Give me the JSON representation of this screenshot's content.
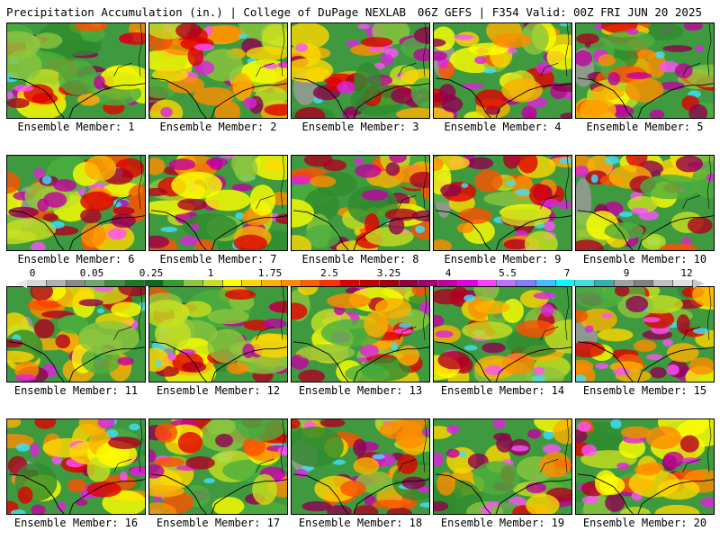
{
  "header": {
    "left_title": "Precipitation Accumulation (in.) | College of DuPage NEXLAB",
    "right_title": "06Z GEFS | F354 Valid: 00Z FRI JUN 20 2025"
  },
  "panels": [
    {
      "label": "Ensemble Member: 1"
    },
    {
      "label": "Ensemble Member: 2"
    },
    {
      "label": "Ensemble Member: 3"
    },
    {
      "label": "Ensemble Member: 4"
    },
    {
      "label": "Ensemble Member: 5"
    },
    {
      "label": "Ensemble Member: 6"
    },
    {
      "label": "Ensemble Member: 7"
    },
    {
      "label": "Ensemble Member: 8"
    },
    {
      "label": "Ensemble Member: 9"
    },
    {
      "label": "Ensemble Member: 10"
    },
    {
      "label": "Ensemble Member: 11"
    },
    {
      "label": "Ensemble Member: 12"
    },
    {
      "label": "Ensemble Member: 13"
    },
    {
      "label": "Ensemble Member: 14"
    },
    {
      "label": "Ensemble Member: 15"
    },
    {
      "label": "Ensemble Member: 16"
    },
    {
      "label": "Ensemble Member: 17"
    },
    {
      "label": "Ensemble Member: 18"
    },
    {
      "label": "Ensemble Member: 19"
    },
    {
      "label": "Ensemble Member: 20"
    }
  ],
  "colorbar": {
    "labels": [
      "0",
      "0.05",
      "0.25",
      "1",
      "1.75",
      "2.5",
      "3.25",
      "4",
      "5.5",
      "7",
      "9",
      "12"
    ],
    "colors": [
      "#d8d8d8",
      "#b0b0b0",
      "#8a8a8a",
      "#6fa86f",
      "#3f8f3f",
      "#1f7a1f",
      "#0f6a1f",
      "#2e9e2e",
      "#8cc63f",
      "#c8e020",
      "#ffff00",
      "#ffd700",
      "#ffb000",
      "#ff8c00",
      "#ff6000",
      "#ff3000",
      "#e00000",
      "#c00000",
      "#a00010",
      "#900040",
      "#a00070",
      "#c000a0",
      "#e000e0",
      "#ff40ff",
      "#c070ff",
      "#8080ff",
      "#40c0ff",
      "#00ffff",
      "#40e0e0",
      "#30b0b0",
      "#a0a0a0",
      "#808080",
      "#c0c0c0",
      "#e0e0e0"
    ],
    "left_arrow_color": "#e8e8e8",
    "right_arrow_color": "#c8c8c8"
  }
}
